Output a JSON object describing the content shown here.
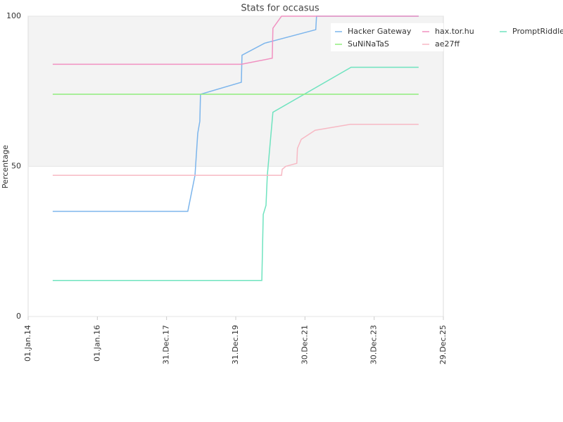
{
  "chart_data": {
    "type": "line",
    "title": "Stats for occasus",
    "y_label": "Percentage",
    "xlim": [
      "2014-01-01",
      "2025-12-29"
    ],
    "xticks": [
      {
        "value": "2014-01-01",
        "label": "01.Jan.14"
      },
      {
        "value": "2016-01-01",
        "label": "01.Jan.16"
      },
      {
        "value": "2017-12-31",
        "label": "31.Dec.17"
      },
      {
        "value": "2019-12-31",
        "label": "31.Dec.19"
      },
      {
        "value": "2021-12-30",
        "label": "30.Dec.21"
      },
      {
        "value": "2023-12-30",
        "label": "30.Dec.23"
      },
      {
        "value": "2025-12-29",
        "label": "29.Dec.25"
      }
    ],
    "ylim": [
      0,
      100
    ],
    "yticks": [
      0,
      50,
      100
    ],
    "alternate_bands": true,
    "legend": "top-right",
    "series": [
      {
        "name": "Hacker Gateway",
        "color": "#7cb5ec",
        "x": [
          "2014-09-17",
          "2018-08-12",
          "2018-10-27",
          "2018-11-25",
          "2018-12-17",
          "2018-12-24",
          "2020-02-28",
          "2020-03-06",
          "2020-10-30",
          "2022-04-23",
          "2022-05-01",
          "2025-04-12"
        ],
        "values": [
          35,
          35,
          47,
          61,
          65,
          74,
          78,
          87,
          91,
          95.5,
          100,
          100
        ]
      },
      {
        "name": "hax.tor.hu",
        "color": "#f191c1",
        "x": [
          "2014-09-17",
          "2020-02-28",
          "2021-01-19",
          "2021-01-26",
          "2021-04-27",
          "2025-04-12"
        ],
        "values": [
          84,
          84,
          86,
          96,
          100,
          100
        ]
      },
      {
        "name": "PromptRiddle",
        "color": "#6fe3bf",
        "x": [
          "2014-09-17",
          "2020-10-01",
          "2020-10-16",
          "2020-11-14",
          "2020-11-28",
          "2021-01-26",
          "2023-05-01",
          "2025-04-12"
        ],
        "values": [
          12,
          12,
          34,
          37,
          47,
          68,
          83,
          83
        ]
      },
      {
        "name": "SuNiNaTaS",
        "color": "#90ed7d",
        "x": [
          "2014-09-17",
          "2025-04-12"
        ],
        "values": [
          74,
          74
        ]
      },
      {
        "name": "ae27ff",
        "color": "#f7b9c4",
        "x": [
          "2014-09-17",
          "2021-04-27",
          "2021-05-04",
          "2021-06-10",
          "2021-10-05",
          "2021-10-12",
          "2021-11-21",
          "2022-04-16",
          "2023-04-23",
          "2025-04-12"
        ],
        "values": [
          47,
          47,
          49,
          50,
          51,
          56,
          59,
          62,
          64,
          64
        ]
      }
    ]
  }
}
